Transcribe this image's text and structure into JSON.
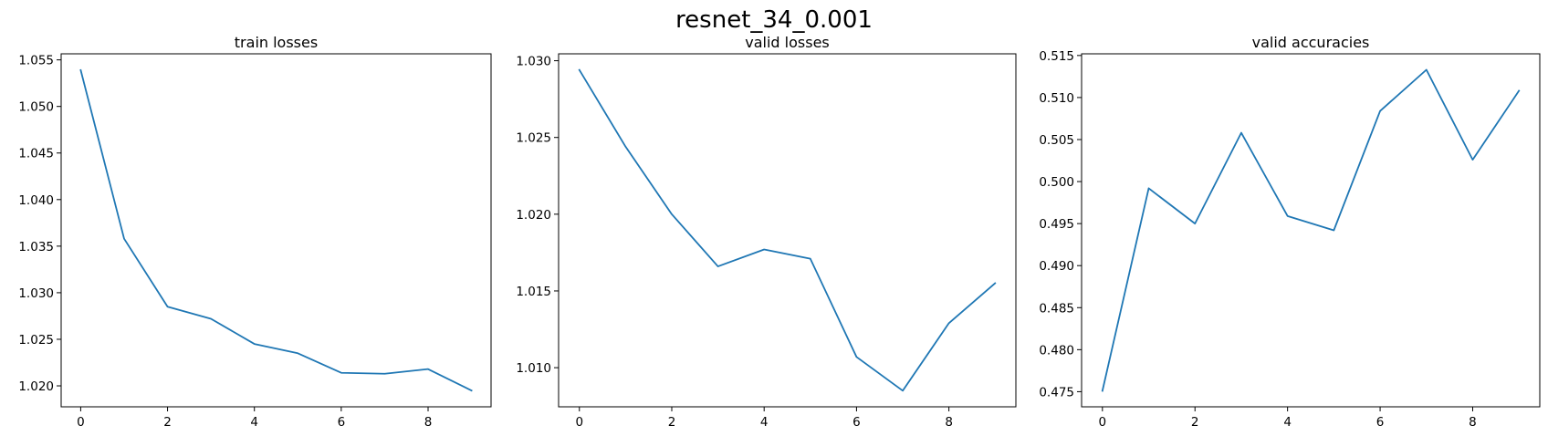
{
  "suptitle": "resnet_34_0.001",
  "chart_data": [
    {
      "type": "line",
      "title": "train losses",
      "xlabel": "",
      "ylabel": "",
      "x": [
        0,
        1,
        2,
        3,
        4,
        5,
        6,
        7,
        8,
        9
      ],
      "series": [
        {
          "values": [
            1.0539,
            1.0358,
            1.0285,
            1.0272,
            1.0245,
            1.0235,
            1.0214,
            1.0213,
            1.0218,
            1.0195
          ]
        }
      ],
      "xlim": [
        -0.45,
        9.45
      ],
      "ylim": [
        1.01775,
        1.05565
      ],
      "xticks": [
        0,
        2,
        4,
        6,
        8
      ],
      "xtick_labels": [
        "0",
        "2",
        "4",
        "6",
        "8"
      ],
      "yticks": [
        1.02,
        1.025,
        1.03,
        1.035,
        1.04,
        1.045,
        1.05,
        1.055
      ],
      "ytick_labels": [
        "1.020",
        "1.025",
        "1.030",
        "1.035",
        "1.040",
        "1.045",
        "1.050",
        "1.055"
      ],
      "color": "#1f77b4",
      "grid": false
    },
    {
      "type": "line",
      "title": "valid losses",
      "xlabel": "",
      "ylabel": "",
      "x": [
        0,
        1,
        2,
        3,
        4,
        5,
        6,
        7,
        8,
        9
      ],
      "series": [
        {
          "values": [
            1.0294,
            1.0244,
            1.02,
            1.0166,
            1.0177,
            1.0171,
            1.0107,
            1.0085,
            1.0129,
            1.0155
          ]
        }
      ],
      "xlim": [
        -0.45,
        9.45
      ],
      "ylim": [
        1.00745,
        1.03045
      ],
      "xticks": [
        0,
        2,
        4,
        6,
        8
      ],
      "xtick_labels": [
        "0",
        "2",
        "4",
        "6",
        "8"
      ],
      "yticks": [
        1.01,
        1.015,
        1.02,
        1.025,
        1.03
      ],
      "ytick_labels": [
        "1.010",
        "1.015",
        "1.020",
        "1.025",
        "1.030"
      ],
      "color": "#1f77b4",
      "grid": false
    },
    {
      "type": "line",
      "title": "valid accuracies",
      "xlabel": "",
      "ylabel": "",
      "x": [
        0,
        1,
        2,
        3,
        4,
        5,
        6,
        7,
        8,
        9
      ],
      "series": [
        {
          "values": [
            0.4751,
            0.4992,
            0.495,
            0.5058,
            0.4959,
            0.4942,
            0.5084,
            0.5133,
            0.5026,
            0.5108
          ]
        }
      ],
      "xlim": [
        -0.45,
        9.45
      ],
      "ylim": [
        0.4732,
        0.5152
      ],
      "xticks": [
        0,
        2,
        4,
        6,
        8
      ],
      "xtick_labels": [
        "0",
        "2",
        "4",
        "6",
        "8"
      ],
      "yticks": [
        0.475,
        0.48,
        0.485,
        0.49,
        0.495,
        0.5,
        0.505,
        0.51,
        0.515
      ],
      "ytick_labels": [
        "0.475",
        "0.480",
        "0.485",
        "0.490",
        "0.495",
        "0.500",
        "0.505",
        "0.510",
        "0.515"
      ],
      "color": "#1f77b4",
      "grid": false
    }
  ]
}
